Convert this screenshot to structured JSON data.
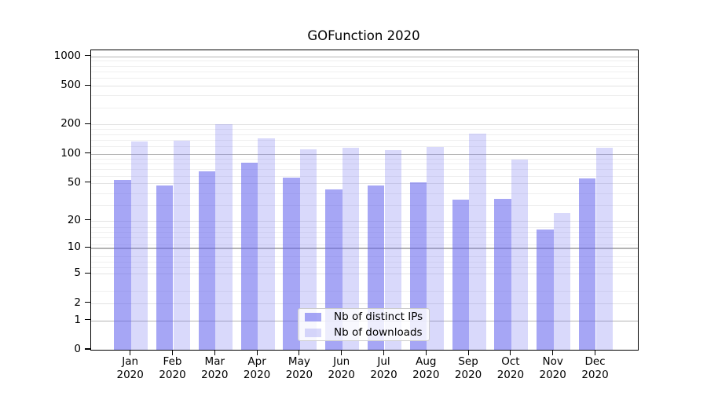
{
  "chart_data": {
    "type": "bar",
    "title": "GOFunction 2020",
    "categories": [
      "Jan",
      "Feb",
      "Mar",
      "Apr",
      "May",
      "Jun",
      "Jul",
      "Aug",
      "Sep",
      "Oct",
      "Nov",
      "Dec"
    ],
    "category_year": "2020",
    "series": [
      {
        "name": "Nb of distinct IPs",
        "color": "rgba(96,96,238,0.56)",
        "values": [
          54,
          47,
          66,
          81,
          57,
          43,
          47,
          51,
          33,
          34,
          16,
          56
        ]
      },
      {
        "name": "Nb of downloads",
        "color": "rgba(120,120,240,0.28)",
        "values": [
          133,
          137,
          200,
          145,
          111,
          116,
          110,
          118,
          162,
          87,
          24,
          116
        ]
      }
    ],
    "yscale": "log1p",
    "ylabel": "",
    "xlabel": "",
    "yticks": [
      0,
      1,
      2,
      5,
      10,
      20,
      50,
      100,
      200,
      500,
      1000
    ],
    "decade_ticks": [
      1,
      10,
      100,
      1000
    ],
    "minor_grid_positions": [
      3,
      4,
      6,
      7,
      8,
      9,
      12,
      14,
      16,
      18,
      30,
      40,
      60,
      70,
      80,
      90,
      120,
      140,
      160,
      180,
      300,
      400,
      600,
      700,
      800,
      900
    ],
    "ylim": [
      0,
      1178
    ],
    "grid": {
      "decade_color": "#b3b3b3",
      "major_color": "#e3e3e3",
      "minor_color": "#efefef"
    },
    "legend": {
      "position": "inside-bottom-center",
      "entries": [
        "Nb of distinct IPs",
        "Nb of downloads"
      ]
    }
  }
}
